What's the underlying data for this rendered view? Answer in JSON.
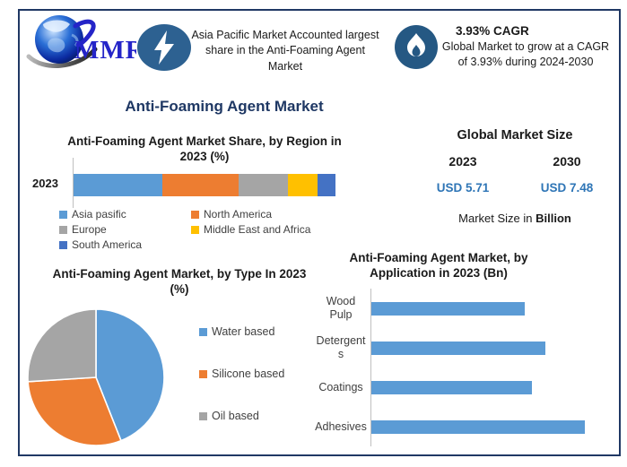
{
  "frame": {
    "border_color": "#203864",
    "background": "#FFFFFF"
  },
  "logo": {
    "text": "MMR",
    "text_color": "#2424C8"
  },
  "highlight_banner": {
    "icon": "lightning-icon",
    "icon_bg": "#2D6191",
    "text": "Asia Pacific Market Accounted largest share in the Anti-Foaming Agent Market"
  },
  "cagr_banner": {
    "icon": "flame-icon",
    "icon_bg": "#255883",
    "title": "3.93% CAGR",
    "body": "Global Market to grow at a CAGR of 3.93% during 2024-2030"
  },
  "main_title": "Anti-Foaming Agent Market",
  "main_title_color": "#1F3864",
  "market_size": {
    "title": "Global Market Size",
    "year_left": "2023",
    "year_right": "2030",
    "value_left": "USD 5.71",
    "value_right": "USD 7.48",
    "value_color": "#2E75B6",
    "note_prefix": "Market Size in ",
    "note_bold": "Billion"
  },
  "chart_data": [
    {
      "id": "region_share",
      "type": "bar",
      "subtype": "stacked-horizontal",
      "title": "Anti-Foaming Agent Market Share, by Region in 2023 (%)",
      "categories": [
        "2023"
      ],
      "series": [
        {
          "name": "Asia pasific",
          "color": "#5B9BD5",
          "values": [
            34
          ]
        },
        {
          "name": "North America",
          "color": "#ED7D31",
          "values": [
            29
          ]
        },
        {
          "name": "Europe",
          "color": "#A5A5A5",
          "values": [
            19
          ]
        },
        {
          "name": "Middle East and Africa",
          "color": "#FFC000",
          "values": [
            11
          ]
        },
        {
          "name": "South America",
          "color": "#4472C4",
          "values": [
            7
          ]
        }
      ],
      "xlim": [
        0,
        100
      ],
      "legend_position": "bottom",
      "grid": false
    },
    {
      "id": "type_share",
      "type": "pie",
      "title": "Anti-Foaming Agent Market, by Type In 2023 (%)",
      "labels": [
        "Water based",
        "Silicone based",
        "Oil based"
      ],
      "values": [
        44,
        30,
        26
      ],
      "colors": [
        "#5B9BD5",
        "#ED7D31",
        "#A5A5A5"
      ],
      "start_angle_deg": 0,
      "direction": "clockwise",
      "legend_position": "right"
    },
    {
      "id": "application",
      "type": "bar",
      "subtype": "horizontal",
      "title": "Anti-Foaming Agent Market, by Application in 2023 (Bn)",
      "categories": [
        "Wood Pulp",
        "Detergents",
        "Coatings",
        "Adhesives"
      ],
      "values": [
        1.15,
        1.3,
        1.2,
        1.6
      ],
      "bar_color": "#5B9BD5",
      "xlim": [
        0,
        1.8
      ],
      "grid": false
    }
  ]
}
